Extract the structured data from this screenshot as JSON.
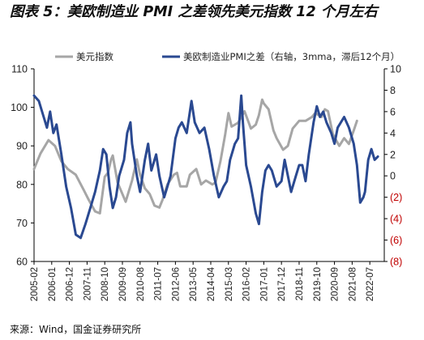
{
  "title": "图表 5：美欧制造业 PMI 之差领先美元指数 12 个月左右",
  "source": "来源：Wind，国金证券研究所",
  "colors": {
    "series_left": "#a6a6a6",
    "series_right": "#2a4991",
    "negative_tick": "#c00000",
    "axis": "#000000"
  },
  "chart_data": {
    "type": "line",
    "left_axis": {
      "ylim": [
        60,
        110
      ],
      "ticks": [
        60,
        70,
        80,
        90,
        100,
        110
      ]
    },
    "right_axis": {
      "ylim": [
        -8,
        10
      ],
      "ticks": [
        {
          "value": -8,
          "label": "(8)"
        },
        {
          "value": -6,
          "label": "(6)"
        },
        {
          "value": -4,
          "label": "(4)"
        },
        {
          "value": -2,
          "label": "(2)"
        },
        {
          "value": 0,
          "label": "0"
        },
        {
          "value": 2,
          "label": "2"
        },
        {
          "value": 4,
          "label": "4"
        },
        {
          "value": 6,
          "label": "6"
        },
        {
          "value": 8,
          "label": "8"
        },
        {
          "value": 10,
          "label": "10"
        }
      ]
    },
    "x_range": [
      "2005-02",
      "2023-04"
    ],
    "x_ticks": [
      "2005-02",
      "2006-01",
      "2006-12",
      "2007-11",
      "2008-10",
      "2009-09",
      "2010-08",
      "2011-07",
      "2012-06",
      "2013-05",
      "2014-04",
      "2015-03",
      "2016-02",
      "2017-01",
      "2017-12",
      "2018-11",
      "2019-10",
      "2020-09",
      "2021-08",
      "2022-07"
    ],
    "legend_position": "top",
    "series": [
      {
        "name": "美元指数",
        "axis": "left",
        "points": [
          [
            "2005-02",
            84
          ],
          [
            "2005-06",
            88
          ],
          [
            "2005-11",
            91.5
          ],
          [
            "2006-03",
            90
          ],
          [
            "2006-07",
            86
          ],
          [
            "2006-11",
            84
          ],
          [
            "2007-04",
            82.5
          ],
          [
            "2007-09",
            78.5
          ],
          [
            "2007-12",
            76
          ],
          [
            "2008-04",
            73
          ],
          [
            "2008-07",
            72.5
          ],
          [
            "2008-10",
            82
          ],
          [
            "2008-12",
            83
          ],
          [
            "2009-02",
            86.5
          ],
          [
            "2009-03",
            87.5
          ],
          [
            "2009-06",
            80.5
          ],
          [
            "2009-08",
            78.5
          ],
          [
            "2009-11",
            75.5
          ],
          [
            "2010-03",
            81
          ],
          [
            "2010-06",
            86.5
          ],
          [
            "2010-08",
            82.5
          ],
          [
            "2010-11",
            79
          ],
          [
            "2011-02",
            77.5
          ],
          [
            "2011-05",
            74.5
          ],
          [
            "2011-08",
            74
          ],
          [
            "2011-10",
            76
          ],
          [
            "2012-01",
            80
          ],
          [
            "2012-05",
            82.5
          ],
          [
            "2012-07",
            83
          ],
          [
            "2012-09",
            79.5
          ],
          [
            "2013-01",
            79.5
          ],
          [
            "2013-03",
            82.5
          ],
          [
            "2013-07",
            84
          ],
          [
            "2013-10",
            80
          ],
          [
            "2014-01",
            81
          ],
          [
            "2014-05",
            80
          ],
          [
            "2014-07",
            80.5
          ],
          [
            "2014-10",
            86
          ],
          [
            "2015-01",
            93
          ],
          [
            "2015-03",
            98.5
          ],
          [
            "2015-05",
            95
          ],
          [
            "2015-09",
            96
          ],
          [
            "2016-01",
            99
          ],
          [
            "2016-05",
            94.5
          ],
          [
            "2016-08",
            95.5
          ],
          [
            "2016-10",
            98
          ],
          [
            "2016-12",
            102
          ],
          [
            "2017-01",
            101
          ],
          [
            "2017-04",
            99.5
          ],
          [
            "2017-07",
            94
          ],
          [
            "2017-09",
            92
          ],
          [
            "2018-01",
            89
          ],
          [
            "2018-04",
            90
          ],
          [
            "2018-07",
            94.5
          ],
          [
            "2018-11",
            96.5
          ],
          [
            "2019-03",
            96.5
          ],
          [
            "2019-07",
            97.5
          ],
          [
            "2019-09",
            98.5
          ],
          [
            "2020-01",
            97.5
          ],
          [
            "2020-03",
            99.5
          ],
          [
            "2020-05",
            99
          ],
          [
            "2020-08",
            93
          ],
          [
            "2020-12",
            90
          ],
          [
            "2021-03",
            92
          ],
          [
            "2021-06",
            90.5
          ],
          [
            "2021-09",
            94
          ],
          [
            "2021-11",
            96.5
          ]
        ]
      },
      {
        "name": "美欧制造业PMI之差（右轴，3mma，滞后12个月）",
        "axis": "right",
        "points": [
          [
            "2005-02",
            7.5
          ],
          [
            "2005-05",
            7
          ],
          [
            "2005-08",
            5.5
          ],
          [
            "2005-10",
            4.5
          ],
          [
            "2005-12",
            6
          ],
          [
            "2006-02",
            4
          ],
          [
            "2006-04",
            4.8
          ],
          [
            "2006-07",
            2
          ],
          [
            "2006-10",
            -1
          ],
          [
            "2007-01",
            -3
          ],
          [
            "2007-04",
            -5.5
          ],
          [
            "2007-07",
            -5.8
          ],
          [
            "2007-10",
            -4.5
          ],
          [
            "2008-01",
            -3
          ],
          [
            "2008-04",
            -1.5
          ],
          [
            "2008-07",
            0.5
          ],
          [
            "2008-09",
            2.5
          ],
          [
            "2008-11",
            2
          ],
          [
            "2009-01",
            -1
          ],
          [
            "2009-03",
            -3
          ],
          [
            "2009-05",
            -2
          ],
          [
            "2009-07",
            0
          ],
          [
            "2009-10",
            1.5
          ],
          [
            "2009-12",
            4
          ],
          [
            "2010-02",
            5
          ],
          [
            "2010-03",
            3
          ],
          [
            "2010-06",
            0
          ],
          [
            "2010-08",
            -1.5
          ],
          [
            "2010-11",
            1.5
          ],
          [
            "2011-01",
            3
          ],
          [
            "2011-03",
            0.5
          ],
          [
            "2011-06",
            2
          ],
          [
            "2011-08",
            0
          ],
          [
            "2011-11",
            -2
          ],
          [
            "2012-01",
            -1
          ],
          [
            "2012-03",
            0
          ],
          [
            "2012-06",
            3.5
          ],
          [
            "2012-08",
            4.5
          ],
          [
            "2012-10",
            5
          ],
          [
            "2013-01",
            4
          ],
          [
            "2013-04",
            7
          ],
          [
            "2013-06",
            5
          ],
          [
            "2013-09",
            4
          ],
          [
            "2013-12",
            4.5
          ],
          [
            "2014-03",
            2.5
          ],
          [
            "2014-06",
            0
          ],
          [
            "2014-09",
            -2
          ],
          [
            "2014-12",
            -1
          ],
          [
            "2015-02",
            -0.5
          ],
          [
            "2015-04",
            1.5
          ],
          [
            "2015-07",
            3
          ],
          [
            "2015-09",
            3.5
          ],
          [
            "2015-11",
            7.5
          ],
          [
            "2015-12",
            5
          ],
          [
            "2016-02",
            1
          ],
          [
            "2016-05",
            -1
          ],
          [
            "2016-08",
            -3.5
          ],
          [
            "2016-10",
            -4.5
          ],
          [
            "2016-12",
            -1.5
          ],
          [
            "2017-02",
            0.5
          ],
          [
            "2017-04",
            1
          ],
          [
            "2017-06",
            0.5
          ],
          [
            "2017-09",
            -1
          ],
          [
            "2017-12",
            -0.5
          ],
          [
            "2018-02",
            1.5
          ],
          [
            "2018-04",
            0
          ],
          [
            "2018-06",
            -1.5
          ],
          [
            "2018-09",
            0
          ],
          [
            "2018-11",
            1
          ],
          [
            "2019-01",
            1
          ],
          [
            "2019-03",
            -0.5
          ],
          [
            "2019-05",
            2
          ],
          [
            "2019-08",
            5
          ],
          [
            "2019-10",
            6.5
          ],
          [
            "2019-12",
            5.5
          ],
          [
            "2020-02",
            6
          ],
          [
            "2020-04",
            5
          ],
          [
            "2020-07",
            4
          ],
          [
            "2020-09",
            3
          ],
          [
            "2020-11",
            4.5
          ],
          [
            "2021-01",
            5
          ],
          [
            "2021-03",
            5.5
          ],
          [
            "2021-06",
            4.5
          ],
          [
            "2021-09",
            3
          ],
          [
            "2021-11",
            1
          ],
          [
            "2022-01",
            -2.5
          ],
          [
            "2022-03",
            -2
          ],
          [
            "2022-04",
            -1.5
          ],
          [
            "2022-06",
            1.5
          ],
          [
            "2022-08",
            2.5
          ],
          [
            "2022-10",
            1.5
          ],
          [
            "2022-12",
            1.8
          ]
        ]
      }
    ]
  }
}
